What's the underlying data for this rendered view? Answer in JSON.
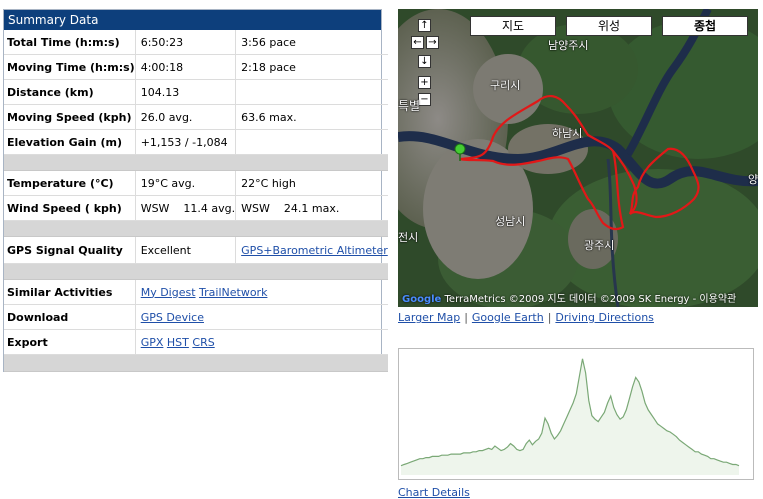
{
  "summary": {
    "title": "Summary Data",
    "rows": [
      {
        "label": "Total Time (h:m:s)",
        "v1": "6:50:23",
        "v2": "3:56 pace"
      },
      {
        "label": "Moving Time (h:m:s)",
        "v1": "4:00:18",
        "v2": "2:18 pace"
      },
      {
        "label": "Distance (km)",
        "v1": "104.13",
        "v2": ""
      },
      {
        "label": "Moving Speed (kph)",
        "v1": "26.0 avg.",
        "v2": "63.6 max."
      },
      {
        "label": "Elevation Gain (m)",
        "v1": "+1,153 / -1,084",
        "v2": ""
      },
      {
        "label": "Temperature (°C)",
        "v1": "19°C avg.",
        "v2": "22°C high"
      },
      {
        "label": "Wind Speed ( kph)",
        "v1": "WSW    11.4 avg.",
        "v2": "WSW    24.1 max."
      },
      {
        "label": "GPS Signal Quality",
        "v1": "Excellent",
        "v2": "GPS+Barometric Altimeter"
      },
      {
        "label": "Similar Activities",
        "links": [
          "My Digest",
          "TrailNetwork"
        ]
      },
      {
        "label": "Download",
        "links": [
          "GPS Device"
        ]
      },
      {
        "label": "Export",
        "links": [
          "GPX",
          "HST",
          "CRS"
        ]
      }
    ]
  },
  "map": {
    "types": [
      "지도",
      "위성",
      "종첩"
    ],
    "labels": [
      "남양주시",
      "구리시",
      "하남시",
      "성남시",
      "광주시",
      "특별",
      "전시",
      "양"
    ],
    "copyright_logo": "Google",
    "copyright_text": "©2009 지도 데이터 ©2009 SK Energy - 이용약관",
    "copyright_text2": "TerraMetrics",
    "zoom_in": "+",
    "zoom_out": "−",
    "pan_up": "↑",
    "pan_down": "↓",
    "pan_left": "←",
    "pan_right": "→",
    "route_color": "#e11818"
  },
  "map_links": [
    "Larger Map",
    "Google Earth",
    "Driving Directions"
  ],
  "map_links_sep": "|",
  "chart_data": {
    "type": "area",
    "color": "#7aa876",
    "y": [
      8,
      9,
      10,
      11,
      12,
      13,
      14,
      14,
      15,
      15,
      16,
      16,
      16,
      17,
      17,
      17,
      18,
      18,
      18,
      18,
      19,
      19,
      19,
      20,
      20,
      21,
      21,
      22,
      23,
      22,
      25,
      23,
      21,
      22,
      24,
      27,
      25,
      22,
      21,
      22,
      27,
      30,
      26,
      29,
      31,
      36,
      49,
      44,
      36,
      31,
      34,
      38,
      44,
      50,
      56,
      62,
      70,
      85,
      100,
      88,
      64,
      51,
      48,
      46,
      50,
      54,
      62,
      68,
      58,
      52,
      48,
      50,
      56,
      66,
      76,
      84,
      80,
      72,
      62,
      56,
      52,
      48,
      44,
      42,
      40,
      38,
      37,
      35,
      33,
      30,
      28,
      26,
      24,
      22,
      20,
      20,
      18,
      17,
      16,
      14,
      14,
      13,
      12,
      11,
      11,
      10,
      9,
      9,
      8
    ],
    "ylim": [
      0,
      105
    ]
  },
  "chart_link": "Chart Details"
}
